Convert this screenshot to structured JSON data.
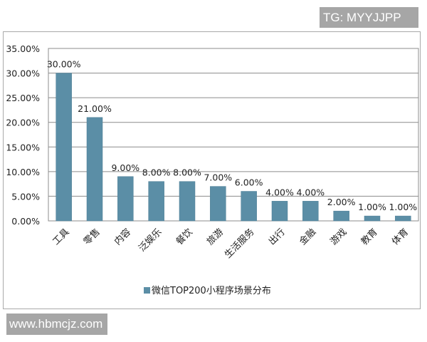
{
  "watermark_top": "TG: MYYJJPP",
  "watermark_bottom": "www.hbmcjz.com",
  "legend": {
    "label": "微信TOP200小程序场景分布",
    "color": "#5b8ea6"
  },
  "yticks": [
    "0.00%",
    "5.00%",
    "10.00%",
    "15.00%",
    "20.00%",
    "25.00%",
    "30.00%",
    "35.00%"
  ],
  "chart_data": {
    "type": "bar",
    "title": "",
    "xlabel": "",
    "ylabel": "",
    "categories": [
      "工具",
      "零售",
      "内容",
      "泛娱乐",
      "餐饮",
      "旅游",
      "生活服务",
      "出行",
      "金融",
      "游戏",
      "教育",
      "体育"
    ],
    "series": [
      {
        "name": "微信TOP200小程序场景分布",
        "values": [
          30.0,
          21.0,
          9.0,
          8.0,
          8.0,
          7.0,
          6.0,
          4.0,
          4.0,
          2.0,
          1.0,
          1.0
        ]
      }
    ],
    "data_labels": [
      "30.00%",
      "21.00%",
      "9.00%",
      "8.00%",
      "8.00%",
      "7.00%",
      "6.00%",
      "4.00%",
      "4.00%",
      "2.00%",
      "1.00%",
      "1.00%"
    ],
    "ylim": [
      0,
      35
    ],
    "ytick_step": 5,
    "grid": true,
    "legend_position": "bottom",
    "bar_color": "#5b8ea6"
  }
}
